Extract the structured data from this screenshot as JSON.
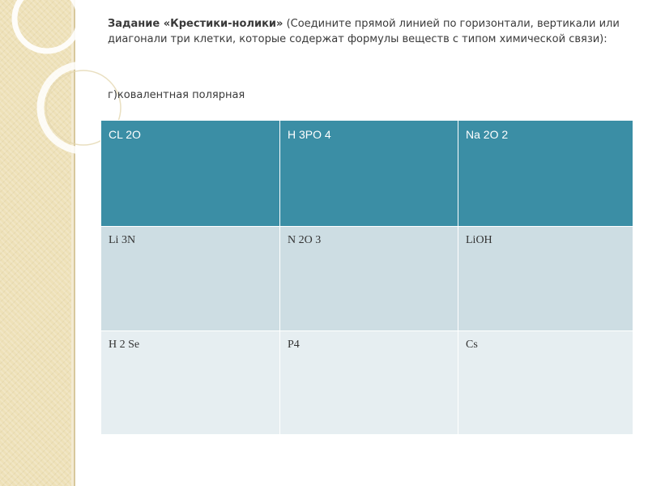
{
  "heading": {
    "title": "Задание «Крестики-нолики»",
    "instruction": "(Соедините прямой линией по горизонтали, вертикали или диагонали три клетки, которые содержат формулы веществ с типом химической связи):"
  },
  "subtask": "г)ковалентная полярная",
  "colors": {
    "header_row": "#3b8ea5",
    "row_light": "#cddde3",
    "row_lighter": "#e6eef1",
    "side_panel": "#eee1b8",
    "text": "#3a3a3a"
  },
  "table": {
    "rows": [
      [
        "CL 2O",
        "H 3PO 4",
        "Na 2O 2"
      ],
      [
        "Li 3N",
        "N 2O 3",
        "LiOH"
      ],
      [
        "H 2 Se",
        "P4",
        "Cs"
      ]
    ]
  }
}
